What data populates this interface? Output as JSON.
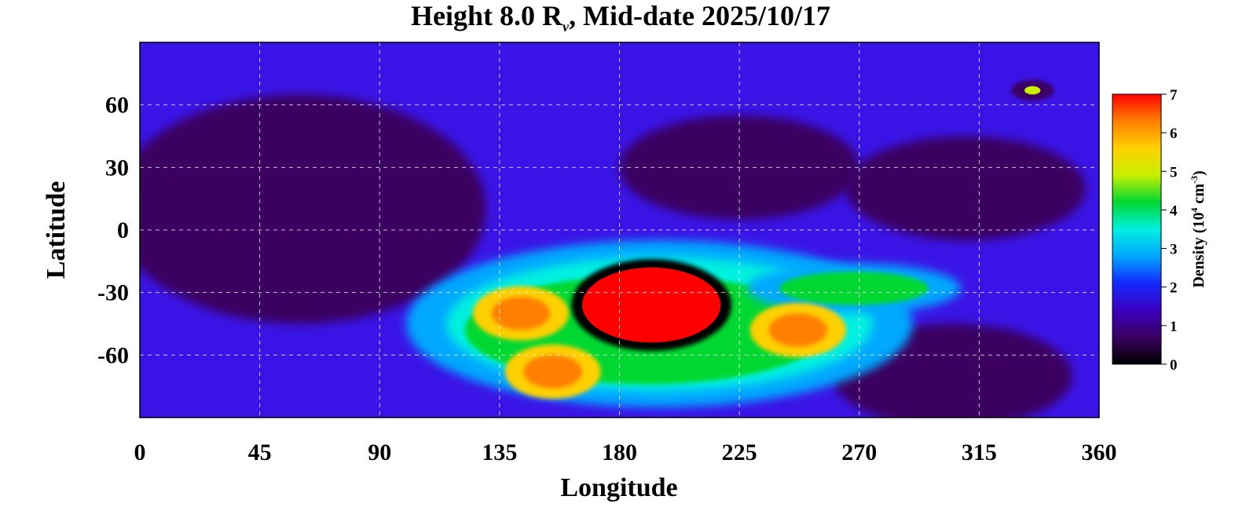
{
  "chart_data": {
    "type": "heatmap",
    "title": "Height 8.0 R",
    "title_subscript": "ν",
    "title_suffix": ", Mid-date 2025/10/17",
    "xlabel": "Longitude",
    "ylabel": "Latitude",
    "xlim": [
      0,
      360
    ],
    "ylim": [
      -90,
      90
    ],
    "x_ticks": [
      0,
      45,
      90,
      135,
      180,
      225,
      270,
      315,
      360
    ],
    "y_ticks": [
      60,
      30,
      0,
      -30,
      -60
    ],
    "y_tick_labels": [
      "60",
      "30",
      "0",
      "-30",
      "-60"
    ],
    "grid": true,
    "colorbar": {
      "label_prefix": "Density (10",
      "label_exp1": "4",
      "label_mid": " cm",
      "label_exp2": "-3",
      "label_suffix": ")",
      "ticks": [
        0,
        1,
        2,
        3,
        4,
        5,
        6,
        7
      ],
      "range": [
        0,
        7
      ],
      "stops": [
        "#000000",
        "#3a0060",
        "#3a00c0",
        "#1428ff",
        "#00a8ff",
        "#00f0e0",
        "#00d832",
        "#c8f000",
        "#ffd000",
        "#ff8000",
        "#ff0000"
      ]
    },
    "features": [
      {
        "name": "dense core",
        "lon": 192,
        "lat": -36,
        "peak_density": 7.0
      },
      {
        "name": "west lobe",
        "lon": 143,
        "lat": -40,
        "peak_density": 6.3
      },
      {
        "name": "west lobe south",
        "lon": 155,
        "lat": -68,
        "peak_density": 6.2
      },
      {
        "name": "east lobe",
        "lon": 247,
        "lat": -48,
        "peak_density": 6.2
      },
      {
        "name": "east band",
        "lon": 268,
        "lat": -28,
        "peak_density": 4.5
      },
      {
        "name": "north spot",
        "lon": 335,
        "lat": 67,
        "peak_density": 5.0
      },
      {
        "name": "low region west",
        "lon": 60,
        "lat": 10,
        "peak_density": 0.4
      },
      {
        "name": "low region mid-north",
        "lon": 225,
        "lat": 30,
        "peak_density": 0.6
      },
      {
        "name": "low region east",
        "lon": 310,
        "lat": 20,
        "peak_density": 0.5
      },
      {
        "name": "low region south-east",
        "lon": 305,
        "lat": -70,
        "peak_density": 0.5
      }
    ]
  }
}
